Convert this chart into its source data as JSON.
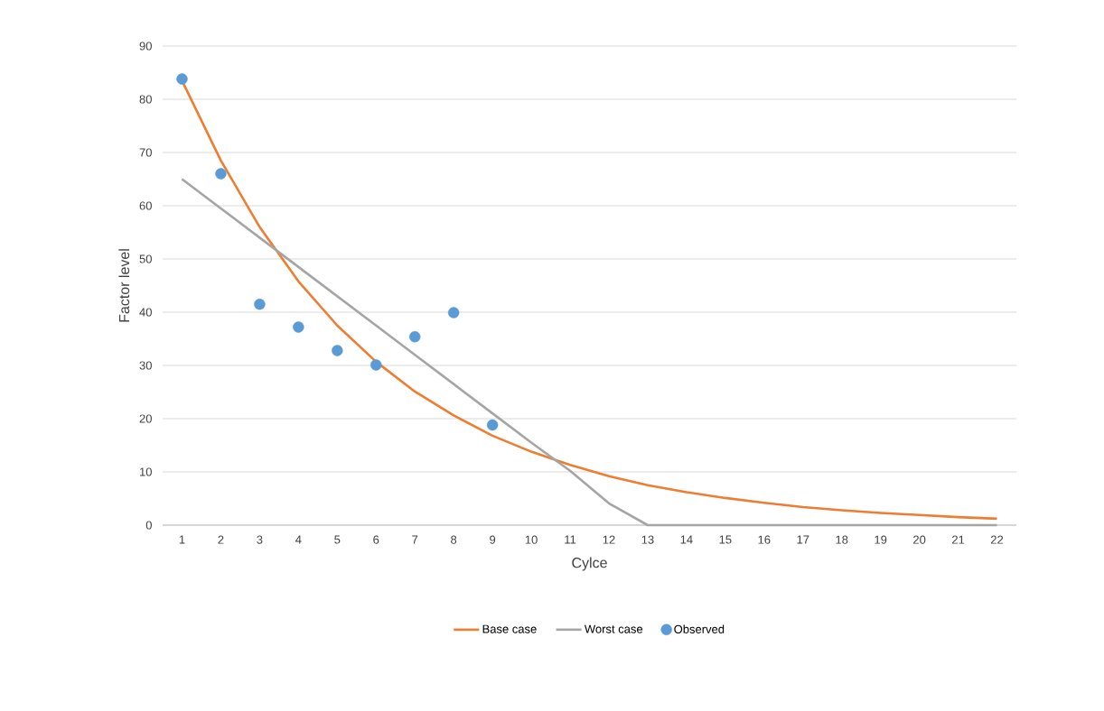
{
  "chart_data": {
    "type": "line",
    "xlabel": "Cylce",
    "ylabel": "Factor level",
    "categories": [
      "1",
      "2",
      "3",
      "4",
      "5",
      "6",
      "7",
      "8",
      "9",
      "10",
      "11",
      "12",
      "13",
      "14",
      "15",
      "16",
      "17",
      "18",
      "19",
      "20",
      "21",
      "22"
    ],
    "series": [
      {
        "name": "Base case",
        "type": "line",
        "color": "#ed7d31",
        "marker": "none",
        "values": [
          83.5,
          68.5,
          56,
          45.8,
          37.5,
          30.7,
          25.1,
          20.6,
          16.8,
          13.8,
          11.3,
          9.2,
          7.5,
          6.2,
          5.1,
          4.2,
          3.4,
          2.8,
          2.3,
          1.9,
          1.5,
          1.2
        ]
      },
      {
        "name": "Worst case",
        "type": "line",
        "color": "#a5a5a5",
        "marker": "none",
        "values": [
          65,
          59.5,
          54,
          48.5,
          43,
          37.5,
          32,
          26.5,
          21,
          15.5,
          10.2,
          4.1,
          0,
          0,
          0,
          0,
          0,
          0,
          0,
          0,
          0,
          0
        ]
      },
      {
        "name": "Observed",
        "type": "scatter",
        "color": "#5b9bd5",
        "marker": "circle",
        "values": [
          83.8,
          66,
          41.5,
          37.2,
          32.8,
          30.1,
          35.4,
          39.9,
          18.8,
          null,
          null,
          null,
          null,
          null,
          null,
          null,
          null,
          null,
          null,
          null,
          null,
          null
        ]
      }
    ],
    "ylim": [
      0,
      90
    ],
    "yticks": [
      0,
      10,
      20,
      30,
      40,
      50,
      60,
      70,
      80,
      90
    ],
    "grid": "y",
    "legend": "bottom",
    "line_style": "solid"
  }
}
